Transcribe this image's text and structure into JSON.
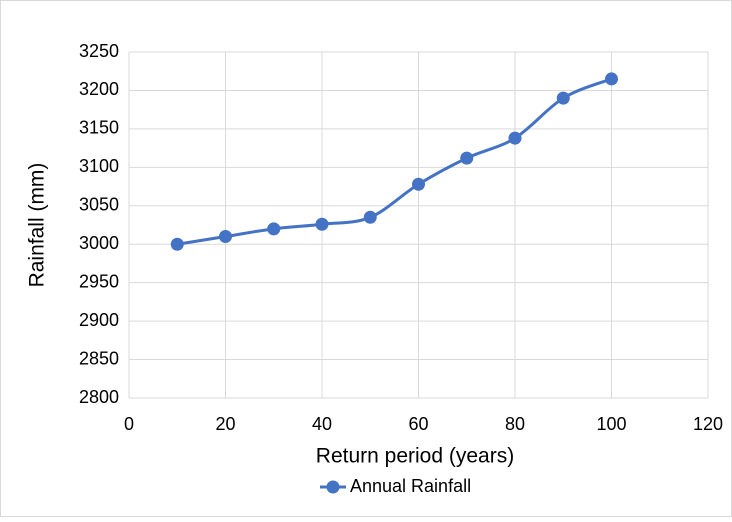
{
  "chart_data": {
    "type": "line",
    "x_label": "Return period (years)",
    "y_label": "Rainfall (mm)",
    "x": [
      10,
      20,
      30,
      40,
      50,
      60,
      70,
      80,
      90,
      100
    ],
    "series": [
      {
        "name": "Annual Rainfall",
        "color": "#4472c4",
        "values": [
          3000,
          3010,
          3020,
          3026,
          3035,
          3078,
          3112,
          3138,
          3190,
          3215
        ]
      }
    ],
    "xlim": [
      0,
      120
    ],
    "xticks": [
      0,
      20,
      40,
      60,
      80,
      100,
      120
    ],
    "ylim": [
      2800,
      3250
    ],
    "yticks": [
      2800,
      2850,
      2900,
      2950,
      3000,
      3050,
      3100,
      3150,
      3200,
      3250
    ],
    "grid": true,
    "legend": "bottom"
  }
}
